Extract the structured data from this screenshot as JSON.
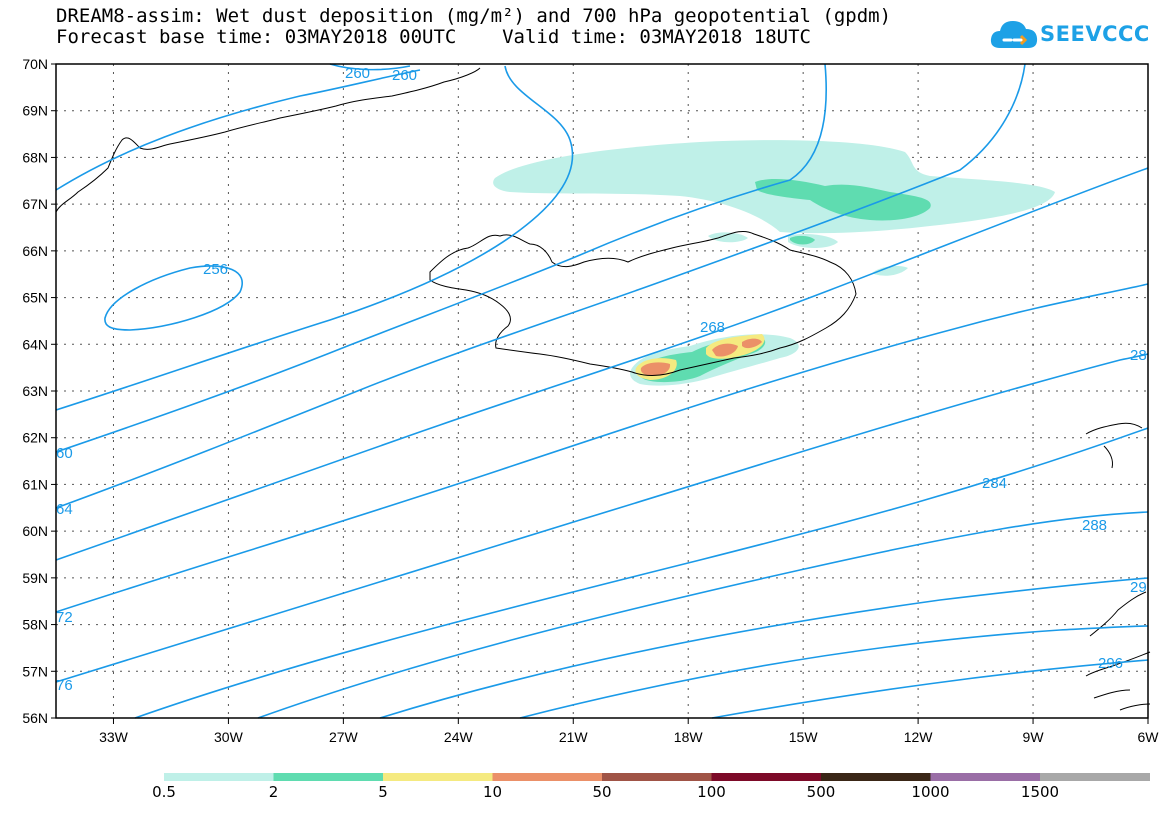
{
  "header": {
    "title_line1": "DREAM8-assim: Wet dust deposition (mg/m²) and 700 hPa geopotential (gpdm)",
    "title_line2": "Forecast base time: 03MAY2018 00UTC    Valid time: 03MAY2018 18UTC"
  },
  "brand": {
    "name": "SEEVCCC",
    "icon": "cloud-logo-icon",
    "color": "#1da1e6"
  },
  "map": {
    "lon_labels": [
      "33W",
      "30W",
      "27W",
      "24W",
      "21W",
      "18W",
      "15W",
      "12W",
      "9W",
      "6W"
    ],
    "lat_labels": [
      "56N",
      "57N",
      "58N",
      "59N",
      "60N",
      "61N",
      "62N",
      "63N",
      "64N",
      "65N",
      "66N",
      "67N",
      "68N",
      "69N",
      "70N"
    ],
    "lon_range": [
      -34.5,
      -6
    ],
    "lat_range": [
      56,
      70
    ],
    "contour_color": "#1a9ae8",
    "contour_labels": [
      "260",
      "260",
      "256",
      "268",
      "28",
      "60",
      "64",
      "72",
      "76",
      "284",
      "288",
      "29",
      "296"
    ]
  },
  "legend": {
    "labels": [
      "0.5",
      "2",
      "5",
      "10",
      "50",
      "100",
      "500",
      "1000",
      "1500"
    ],
    "colors": [
      "#bff0e8",
      "#5fdcb0",
      "#f5ea80",
      "#eb9068",
      "#a05446",
      "#7d0a28",
      "#3a2616",
      "#9a6ea6",
      "#a8a8a8"
    ]
  }
}
